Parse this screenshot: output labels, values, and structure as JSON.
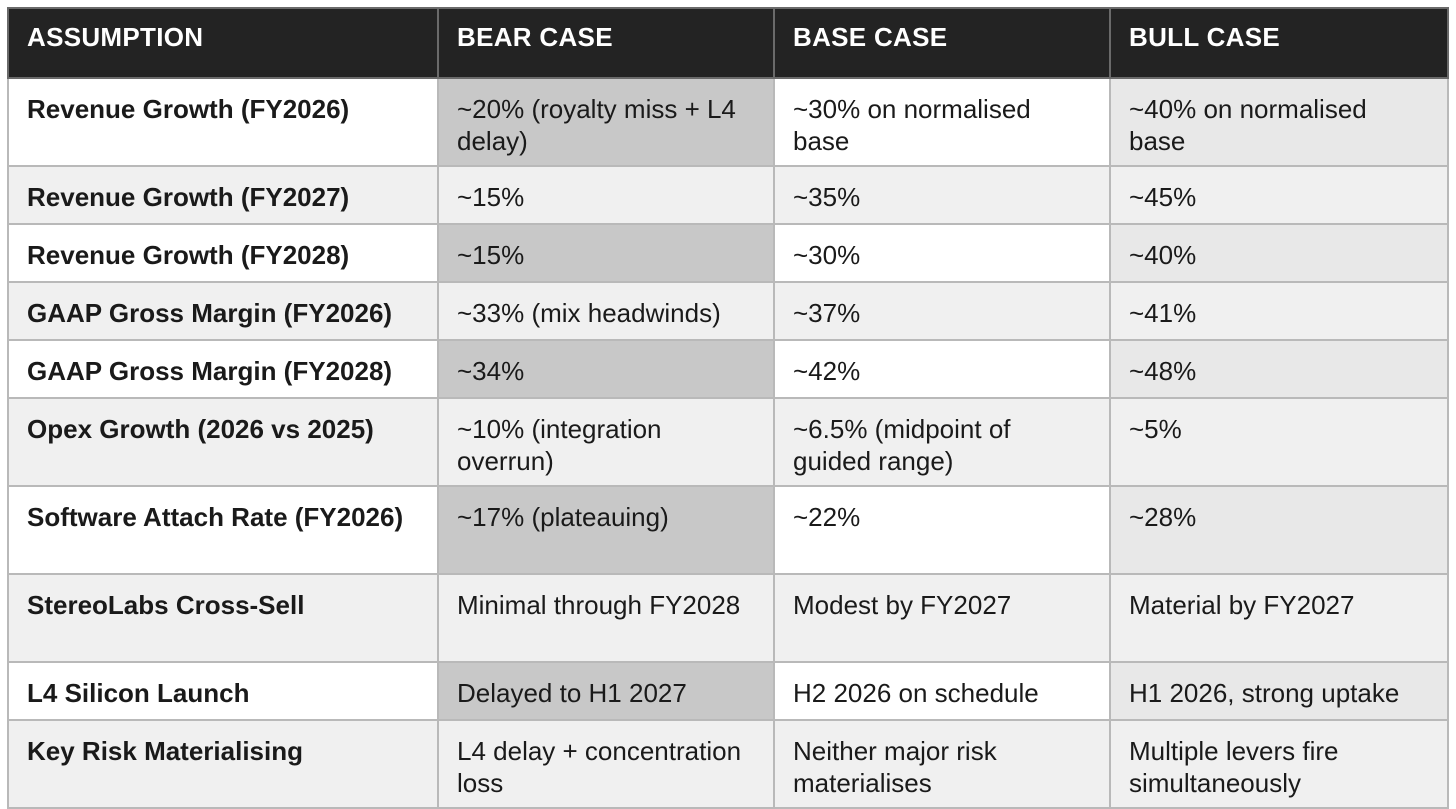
{
  "table": {
    "headers": [
      "ASSUMPTION",
      "BEAR CASE",
      "BASE CASE",
      "BULL CASE"
    ],
    "rows": [
      [
        "Revenue Growth (FY2026)",
        "~20% (royalty miss + L4 delay)",
        "~30% on normalised base",
        "~40% on normalised base"
      ],
      [
        "Revenue Growth (FY2027)",
        "~15%",
        "~35%",
        "~45%"
      ],
      [
        "Revenue Growth (FY2028)",
        "~15%",
        "~30%",
        "~40%"
      ],
      [
        "GAAP Gross Margin (FY2026)",
        "~33% (mix headwinds)",
        "~37%",
        "~41%"
      ],
      [
        "GAAP Gross Margin (FY2028)",
        "~34%",
        "~42%",
        "~48%"
      ],
      [
        "Opex Growth (2026 vs 2025)",
        "~10% (integration overrun)",
        "~6.5% (midpoint of guided range)",
        "~5%"
      ],
      [
        "Software Attach Rate (FY2026)",
        "~17% (plateauing)",
        "~22%",
        "~28%"
      ],
      [
        "StereoLabs Cross-Sell",
        "Minimal through FY2028",
        "Modest by FY2027",
        "Material by FY2027"
      ],
      [
        "L4 Silicon Launch",
        "Delayed to H1 2027",
        "H2 2026 on schedule",
        "H1 2026, strong uptake"
      ],
      [
        "Key Risk Materialising",
        "L4 delay + concentration loss",
        "Neither major risk materialises",
        "Multiple levers fire simultaneously"
      ]
    ]
  }
}
